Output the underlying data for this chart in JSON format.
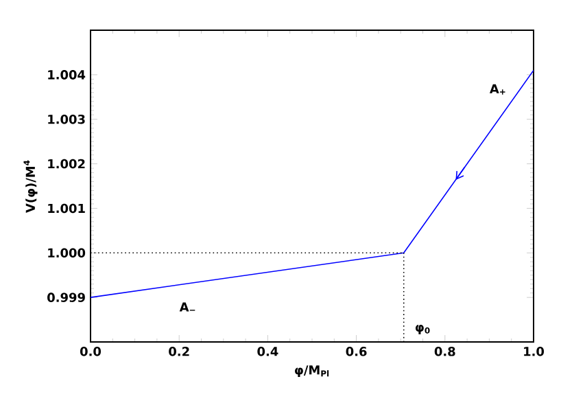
{
  "chart_data": {
    "type": "line",
    "xlabel": "φ/M$_{Pl}$",
    "ylabel": "V(φ)/M$^{4}$",
    "xlim": [
      0,
      1
    ],
    "ylim": [
      0.998,
      1.005
    ],
    "xticks": [
      {
        "value": 0,
        "label": "0.0"
      },
      {
        "value": 0.2,
        "label": "0.2"
      },
      {
        "value": 0.4,
        "label": "0.4"
      },
      {
        "value": 0.6,
        "label": "0.6"
      },
      {
        "value": 0.8,
        "label": "0.8"
      },
      {
        "value": 1,
        "label": "1.0"
      }
    ],
    "yticks": [
      0.999,
      {
        "value": 1,
        "label": "1.000"
      },
      1.001,
      1.002,
      1.003,
      1.004
    ],
    "grid": false,
    "marker": "none",
    "series": [
      {
        "color": "#0000ff",
        "x": [
          0,
          0.707,
          1
        ],
        "values": [
          0.999,
          1.0,
          1.0041
        ],
        "line_style": "solid"
      },
      {
        "color": "#000000",
        "x": [
          0,
          0.707
        ],
        "values": [
          1.0,
          1.0
        ],
        "line_style": "dotted"
      },
      {
        "color": "#000000",
        "x": [
          0.707,
          0.707
        ],
        "values": [
          0.998,
          1.0
        ],
        "line_style": "dotted"
      }
    ],
    "annotations": [
      "A$_{+}$",
      "A$_{−}$",
      "φ$_{0}$"
    ]
  }
}
